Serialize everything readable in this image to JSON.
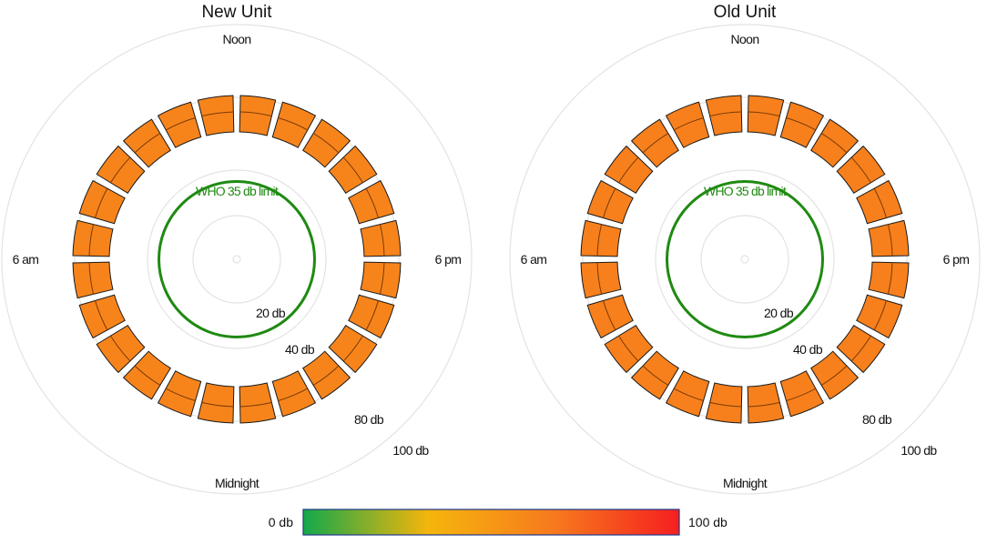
{
  "chart_data": [
    {
      "type": "polar-bar",
      "title": "New Unit",
      "hour_labels": {
        "top": "Noon",
        "left": "6 am",
        "right": "6 pm",
        "bottom": "Midnight"
      },
      "rings": [
        {
          "value": 20,
          "label": "20 db"
        },
        {
          "value": 40,
          "label": "40 db"
        },
        {
          "value": 80,
          "label": "80 db"
        },
        {
          "value": 100,
          "label": "100 db"
        }
      ],
      "who_limit": {
        "value": 35,
        "label": "WHO 35 db limit",
        "color": "#1f8a12"
      },
      "hours": [
        0,
        1,
        2,
        3,
        4,
        5,
        6,
        7,
        8,
        9,
        10,
        11,
        12,
        13,
        14,
        15,
        16,
        17,
        18,
        19,
        20,
        21,
        22,
        23
      ],
      "values_db": [
        61,
        61,
        61,
        61,
        61,
        61,
        61,
        61,
        61,
        61,
        61,
        61,
        61,
        61,
        61,
        61,
        61,
        61,
        61,
        61,
        61,
        61,
        61,
        61
      ]
    },
    {
      "type": "polar-bar",
      "title": "Old Unit",
      "hour_labels": {
        "top": "Noon",
        "left": "6 am",
        "right": "6 pm",
        "bottom": "Midnight"
      },
      "rings": [
        {
          "value": 20,
          "label": "20 db"
        },
        {
          "value": 40,
          "label": "40 db"
        },
        {
          "value": 80,
          "label": "80 db"
        },
        {
          "value": 100,
          "label": "100 db"
        }
      ],
      "who_limit": {
        "value": 35,
        "label": "WHO 35 db limit",
        "color": "#1f8a12"
      },
      "hours": [
        0,
        1,
        2,
        3,
        4,
        5,
        6,
        7,
        8,
        9,
        10,
        11,
        12,
        13,
        14,
        15,
        16,
        17,
        18,
        19,
        20,
        21,
        22,
        23
      ],
      "values_db": [
        63,
        63,
        63,
        63,
        63,
        63,
        63,
        63,
        63,
        63,
        63,
        63,
        63,
        63,
        63,
        63,
        63,
        63,
        63,
        63,
        63,
        63,
        63,
        63
      ]
    }
  ],
  "colorbar": {
    "min_label": "0 db",
    "max_label": "100 db",
    "colors": [
      "#13a84a",
      "#f5b50c",
      "#f77a1e",
      "#f51f1f"
    ]
  }
}
